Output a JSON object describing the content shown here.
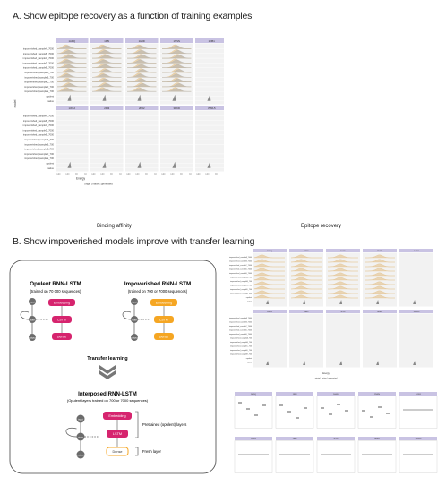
{
  "titles": {
    "a": "A. Show epitope recovery as a function of training examples",
    "b": "B. Show impoverished models improve with transfer learning"
  },
  "column_labels": {
    "binding": "Binding affinity",
    "epitope": "Epitope recovery"
  },
  "diagram": {
    "opulent": {
      "title": "Opulent RNN-LSTM",
      "subtitle": "(trained on 70 000 sequences)",
      "layers": [
        "Embedding",
        "LSTM",
        "Dense"
      ]
    },
    "impoverished": {
      "title": "Impoverished RNN-LSTM",
      "subtitle": "(trained on 700 or 7000 sequences)",
      "layers": [
        "Embedding",
        "LSTM",
        "Dense"
      ]
    },
    "transfer_label": "Transfer learning",
    "interposed": {
      "title": "Interposed RNN-LSTM",
      "subtitle": "(Opulent layers trained on 700 or 7000 sequences)",
      "layers": [
        "Embedding",
        "LSTM",
        "Dense"
      ],
      "legend_pretrained": "Pretrained (opulent) layers",
      "legend_fresh": "Fresh layer"
    },
    "node_labels": {
      "input": "input",
      "state": "state",
      "output": "output"
    },
    "colors": {
      "pretrained": "#d6246e",
      "fresh": "#f5a623",
      "node": "#6b6b6b"
    }
  },
  "fig_a": {
    "top_strips": [
      "1ADQ",
      "1FBI",
      "1H0D",
      "1NSN",
      "1OB1"
    ],
    "bottom_strips": [
      "1WEJ",
      "2IH3",
      "2P52",
      "3RKD",
      "3VRL5"
    ],
    "y_axis_title": "model",
    "x_axis_title": "Energy",
    "x_ticks": [
      "-120",
      "-100",
      "-80",
      "-60"
    ],
    "legend": [
      "origin",
      "native",
      "generated"
    ],
    "rows": [
      "impoverished_sampleA_7000",
      "impoverished_sampleB_7000",
      "impoverished_sampleC_7000",
      "impoverished_sampleD_7000",
      "impoverished_sampleE_7000",
      "impoverished_sampleA_700",
      "impoverished_sampleB_700",
      "impoverished_sampleC_700",
      "impoverished_sampleD_700",
      "impoverished_sampleE_700",
      "opulent",
      "native"
    ]
  }
}
